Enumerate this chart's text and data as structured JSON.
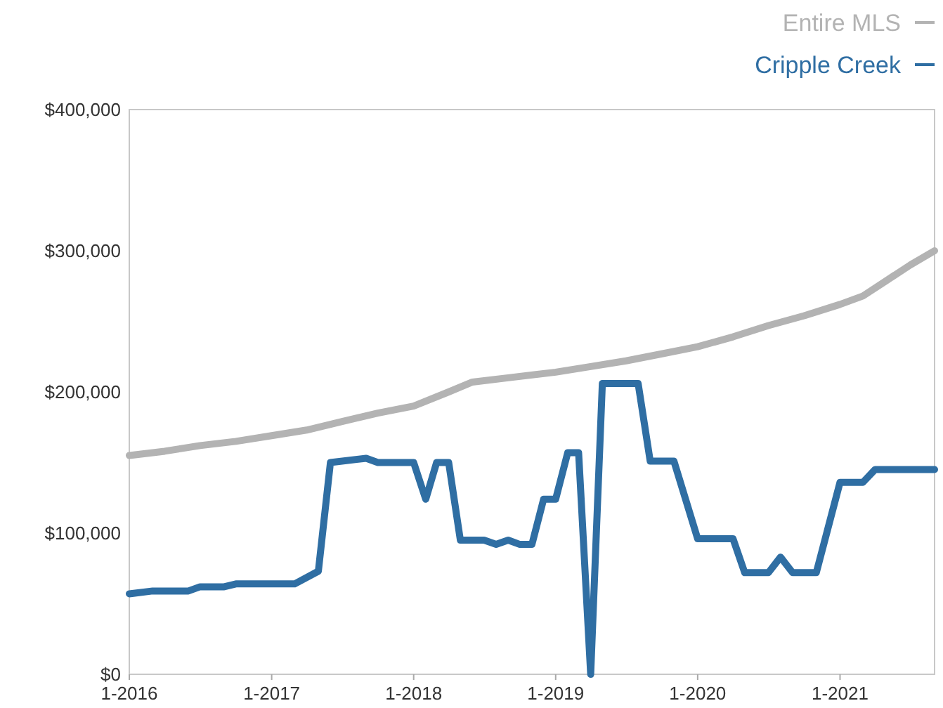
{
  "chart_data": {
    "type": "line",
    "legend": "top right",
    "grid": false,
    "marker": "none",
    "line_style": "solid",
    "xlim": [
      "2016-01",
      "2021-09"
    ],
    "xticks": [
      {
        "value": "2016-01",
        "label": "1-2016"
      },
      {
        "value": "2017-01",
        "label": "1-2017"
      },
      {
        "value": "2018-01",
        "label": "1-2018"
      },
      {
        "value": "2019-01",
        "label": "1-2019"
      },
      {
        "value": "2020-01",
        "label": "1-2020"
      },
      {
        "value": "2021-01",
        "label": "1-2021"
      }
    ],
    "ylim": [
      0,
      400000
    ],
    "yticks": [
      {
        "value": 0,
        "label": "$0"
      },
      {
        "value": 100000,
        "label": "$100,000"
      },
      {
        "value": 200000,
        "label": "$200,000"
      },
      {
        "value": 300000,
        "label": "$300,000"
      },
      {
        "value": 400000,
        "label": "$400,000"
      }
    ],
    "series": [
      {
        "name": "Entire MLS",
        "color": "#b3b3b3",
        "x": [
          "2016-01",
          "2016-04",
          "2016-07",
          "2016-10",
          "2017-01",
          "2017-04",
          "2017-07",
          "2017-10",
          "2018-01",
          "2018-04",
          "2018-06",
          "2018-09",
          "2019-01",
          "2019-04",
          "2019-07",
          "2019-10",
          "2020-01",
          "2020-04",
          "2020-07",
          "2020-10",
          "2021-01",
          "2021-03",
          "2021-05",
          "2021-07",
          "2021-09"
        ],
        "values": [
          155000,
          158000,
          162000,
          165000,
          169000,
          173000,
          179000,
          185000,
          190000,
          200000,
          207000,
          210000,
          214000,
          218000,
          222000,
          227000,
          232000,
          239000,
          247000,
          254000,
          262000,
          268000,
          279000,
          290000,
          300000
        ]
      },
      {
        "name": "Cripple Creek",
        "color": "#2f6ea3",
        "x": [
          "2016-01",
          "2016-03",
          "2016-06",
          "2016-07",
          "2016-09",
          "2016-10",
          "2017-03",
          "2017-05",
          "2017-06",
          "2017-09",
          "2017-10",
          "2018-01",
          "2018-02",
          "2018-03",
          "2018-04",
          "2018-05",
          "2018-07",
          "2018-08",
          "2018-09",
          "2018-10",
          "2018-11",
          "2018-12",
          "2019-01",
          "2019-02",
          "2019-03",
          "2019-04",
          "2019-05",
          "2019-08",
          "2019-09",
          "2019-11",
          "2020-01",
          "2020-04",
          "2020-05",
          "2020-07",
          "2020-08",
          "2020-09",
          "2020-11",
          "2021-01",
          "2021-03",
          "2021-04",
          "2021-09"
        ],
        "values": [
          57000,
          59000,
          59000,
          62000,
          62000,
          64000,
          64000,
          73000,
          150000,
          153000,
          150000,
          150000,
          124000,
          150000,
          150000,
          95000,
          95000,
          92000,
          95000,
          92000,
          92000,
          124000,
          124000,
          157000,
          157000,
          0,
          206000,
          206000,
          151000,
          151000,
          96000,
          96000,
          72000,
          72000,
          83000,
          72000,
          72000,
          136000,
          136000,
          145000,
          145000
        ]
      }
    ]
  }
}
